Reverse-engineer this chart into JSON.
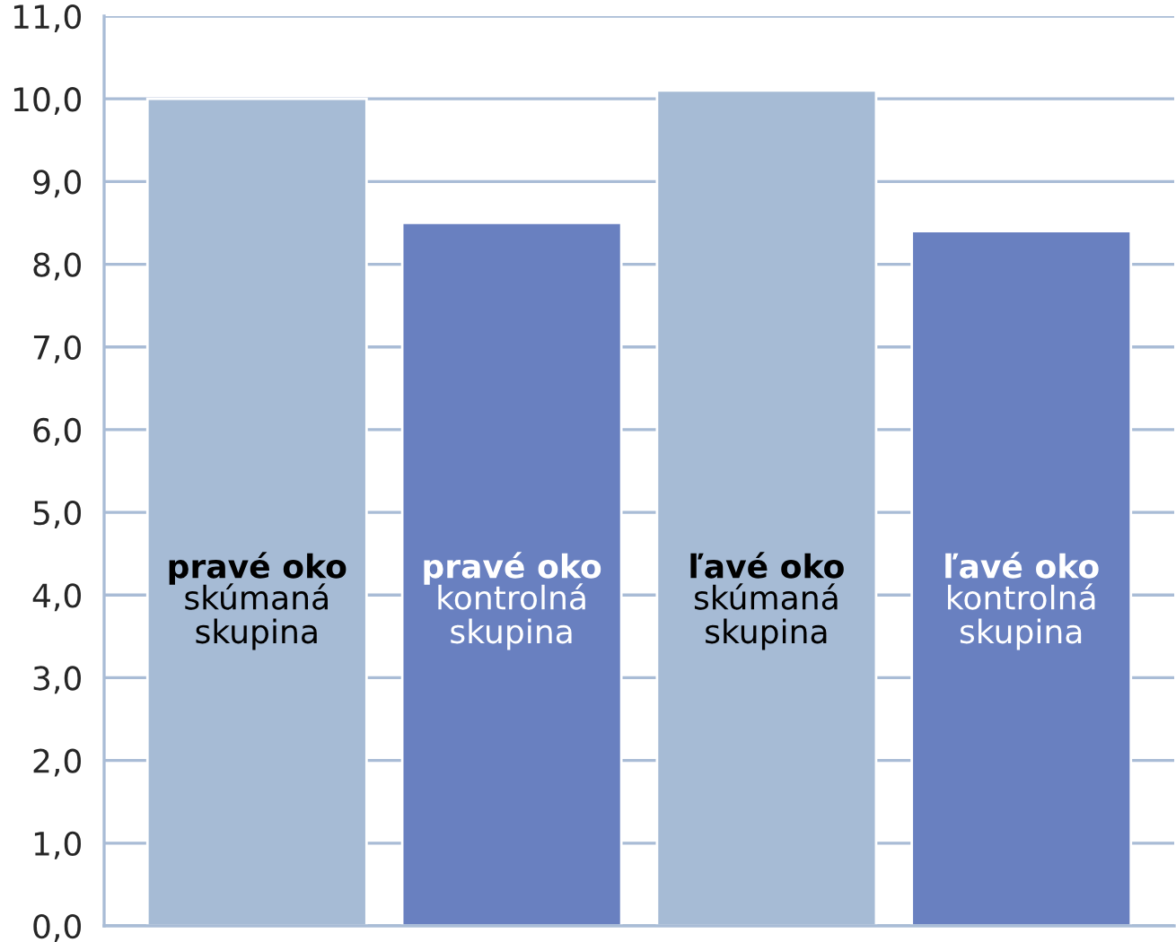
{
  "chart_data": {
    "type": "bar",
    "categories": [
      "pravé oko\nskúmaná\nskupina",
      "pravé oko\nkontrolná\nskupina",
      "ľavé oko\nskúmaná\nskupina",
      "ľavé oko\nkontrolná\nskupina"
    ],
    "values": [
      10.0,
      8.5,
      10.1,
      8.4
    ],
    "colors": [
      "#a6bbd5",
      "#6980c0",
      "#a6bbd5",
      "#6980c0"
    ],
    "ylim": [
      0,
      11
    ],
    "yticks": [
      {
        "value": 0,
        "label": "0,0"
      },
      {
        "value": 1,
        "label": "1,0"
      },
      {
        "value": 2,
        "label": "2,0"
      },
      {
        "value": 3,
        "label": "3,0"
      },
      {
        "value": 4,
        "label": "4,0"
      },
      {
        "value": 5,
        "label": "5,0"
      },
      {
        "value": 6,
        "label": "6,0"
      },
      {
        "value": 7,
        "label": "7,0"
      },
      {
        "value": 8,
        "label": "8,0"
      },
      {
        "value": 9,
        "label": "9,0"
      },
      {
        "value": 10,
        "label": "10,0"
      },
      {
        "value": 11,
        "label": "11,0"
      }
    ],
    "grid": "y",
    "tick_labels": "y"
  }
}
